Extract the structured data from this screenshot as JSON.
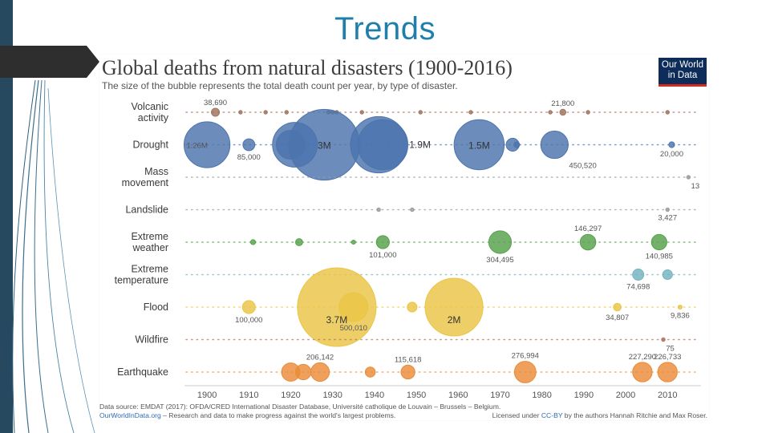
{
  "slide": {
    "title": "Trends"
  },
  "logo": {
    "line1": "Our World",
    "line2": "in Data"
  },
  "chart_data": {
    "type": "scatter",
    "bubble": true,
    "title": "Global deaths from natural disasters (1900-2016)",
    "subtitle": "The size of the bubble represents the total death count per year, by type of disaster.",
    "xlim": [
      1895,
      2018
    ],
    "xticks": [
      1900,
      1910,
      1920,
      1930,
      1940,
      1950,
      1960,
      1970,
      1980,
      1990,
      2000,
      2010
    ],
    "rows": [
      {
        "name": "Volcanic activity",
        "label_lines": [
          "Volcanic",
          "activity"
        ],
        "color": "#a0735e",
        "points": [
          {
            "year": 1902,
            "deaths": 38690,
            "label": "38,690",
            "label_pos": "above"
          },
          {
            "year": 1985,
            "deaths": 21800,
            "label": "21,800",
            "label_pos": "above"
          },
          {
            "year": 1908,
            "deaths": 200
          },
          {
            "year": 1914,
            "deaths": 150
          },
          {
            "year": 1919,
            "deaths": 5000
          },
          {
            "year": 1929,
            "deaths": 300
          },
          {
            "year": 1930,
            "deaths": 1300
          },
          {
            "year": 1931,
            "deaths": 200
          },
          {
            "year": 1937,
            "deaths": 500
          },
          {
            "year": 1951,
            "deaths": 3000
          },
          {
            "year": 1963,
            "deaths": 100
          },
          {
            "year": 1982,
            "deaths": 2000
          },
          {
            "year": 1991,
            "deaths": 800
          },
          {
            "year": 2010,
            "deaths": 400
          }
        ]
      },
      {
        "name": "Drought",
        "label_lines": [
          "Drought"
        ],
        "color": "#4c74ad",
        "points": [
          {
            "year": 1900,
            "deaths": 1260000,
            "label": "1.26M",
            "label_pos": "inside-left"
          },
          {
            "year": 1910,
            "deaths": 85000,
            "label": "85,000",
            "label_pos": "below"
          },
          {
            "year": 1920,
            "deaths": 500000
          },
          {
            "year": 1921,
            "deaths": 1200000
          },
          {
            "year": 1928,
            "deaths": 3000000,
            "label": "3M",
            "label_pos": "inside"
          },
          {
            "year": 1941,
            "deaths": 1900000,
            "label": "1.9M",
            "label_pos": "right"
          },
          {
            "year": 1942,
            "deaths": 1500000
          },
          {
            "year": 1965,
            "deaths": 1500000,
            "label": "1.5M",
            "label_pos": "inside"
          },
          {
            "year": 1973,
            "deaths": 100000
          },
          {
            "year": 1974,
            "deaths": 20000
          },
          {
            "year": 1983,
            "deaths": 450520,
            "label": "450,520",
            "label_pos": "below-right"
          },
          {
            "year": 2011,
            "deaths": 20000,
            "label": "20,000",
            "label_pos": "below"
          }
        ]
      },
      {
        "name": "Mass movement",
        "label_lines": [
          "Mass",
          "movement"
        ],
        "color": "#9a9a9a",
        "points": [
          {
            "year": 2015,
            "deaths": 13,
            "label": "13",
            "label_pos": "below-right"
          }
        ]
      },
      {
        "name": "Landslide",
        "label_lines": [
          "Landslide"
        ],
        "color": "#9a9a9a",
        "points": [
          {
            "year": 1949,
            "deaths": 5000
          },
          {
            "year": 1941,
            "deaths": 1500
          },
          {
            "year": 2010,
            "deaths": 3427,
            "label": "3,427",
            "label_pos": "below"
          }
        ]
      },
      {
        "name": "Extreme weather",
        "label_lines": [
          "Extreme",
          "weather"
        ],
        "color": "#55a14a",
        "points": [
          {
            "year": 1911,
            "deaths": 15000
          },
          {
            "year": 1922,
            "deaths": 30000
          },
          {
            "year": 1935,
            "deaths": 10000
          },
          {
            "year": 1942,
            "deaths": 101000,
            "label": "101,000",
            "label_pos": "below"
          },
          {
            "year": 1970,
            "deaths": 304495,
            "label": "304,495",
            "label_pos": "below"
          },
          {
            "year": 1991,
            "deaths": 146297,
            "label": "146,297",
            "label_pos": "above"
          },
          {
            "year": 2008,
            "deaths": 140985,
            "label": "140,985",
            "label_pos": "below"
          }
        ]
      },
      {
        "name": "Extreme temperature",
        "label_lines": [
          "Extreme",
          "temperature"
        ],
        "color": "#73b3bf",
        "points": [
          {
            "year": 2003,
            "deaths": 74698,
            "label": "74,698",
            "label_pos": "below"
          },
          {
            "year": 2010,
            "deaths": 56000
          }
        ]
      },
      {
        "name": "Flood",
        "label_lines": [
          "Flood"
        ],
        "color": "#eac545",
        "points": [
          {
            "year": 1910,
            "deaths": 100000,
            "label": "100,000",
            "label_pos": "below"
          },
          {
            "year": 1931,
            "deaths": 3700000,
            "label": "3.7M",
            "label_pos": "inside-below"
          },
          {
            "year": 1935,
            "deaths": 500010,
            "label": "500,010",
            "label_pos": "below"
          },
          {
            "year": 1949,
            "deaths": 57000
          },
          {
            "year": 1959,
            "deaths": 2000000,
            "label": "2M",
            "label_pos": "inside-below"
          },
          {
            "year": 1998,
            "deaths": 34807,
            "label": "34,807",
            "label_pos": "below"
          },
          {
            "year": 2013,
            "deaths": 9836,
            "label": "9,836",
            "label_pos": "below"
          }
        ]
      },
      {
        "name": "Wildfire",
        "label_lines": [
          "Wildfire"
        ],
        "color": "#b0705a",
        "points": [
          {
            "year": 2009,
            "deaths": 75,
            "label": "75",
            "label_pos": "below-right"
          }
        ]
      },
      {
        "name": "Earthquake",
        "label_lines": [
          "Earthquake"
        ],
        "color": "#ea8b38",
        "points": [
          {
            "year": 1920,
            "deaths": 200000
          },
          {
            "year": 1923,
            "deaths": 142000
          },
          {
            "year": 1927,
            "deaths": 206142,
            "label": "206,142",
            "label_pos": "above"
          },
          {
            "year": 1939,
            "deaths": 60000
          },
          {
            "year": 1948,
            "deaths": 115618,
            "label": "115,618",
            "label_pos": "above"
          },
          {
            "year": 1976,
            "deaths": 276994,
            "label": "276,994",
            "label_pos": "above"
          },
          {
            "year": 2004,
            "deaths": 227290,
            "label": "227,290",
            "label_pos": "above"
          },
          {
            "year": 2010,
            "deaths": 226733,
            "label": "226,733",
            "label_pos": "above"
          }
        ]
      }
    ]
  },
  "footer": {
    "source": "Data source: EMDAT (2017): OFDA/CRED International Disaster Database, Université catholique de Louvain – Brussels – Belgium.",
    "owid_link": "OurWorldInData.org",
    "owid_text": " – Research and data to make progress against the world's largest problems.",
    "license_prefix": "Licensed under ",
    "license_link": "CC-BY",
    "license_suffix": " by the authors Hannah Ritchie and Max Roser."
  }
}
